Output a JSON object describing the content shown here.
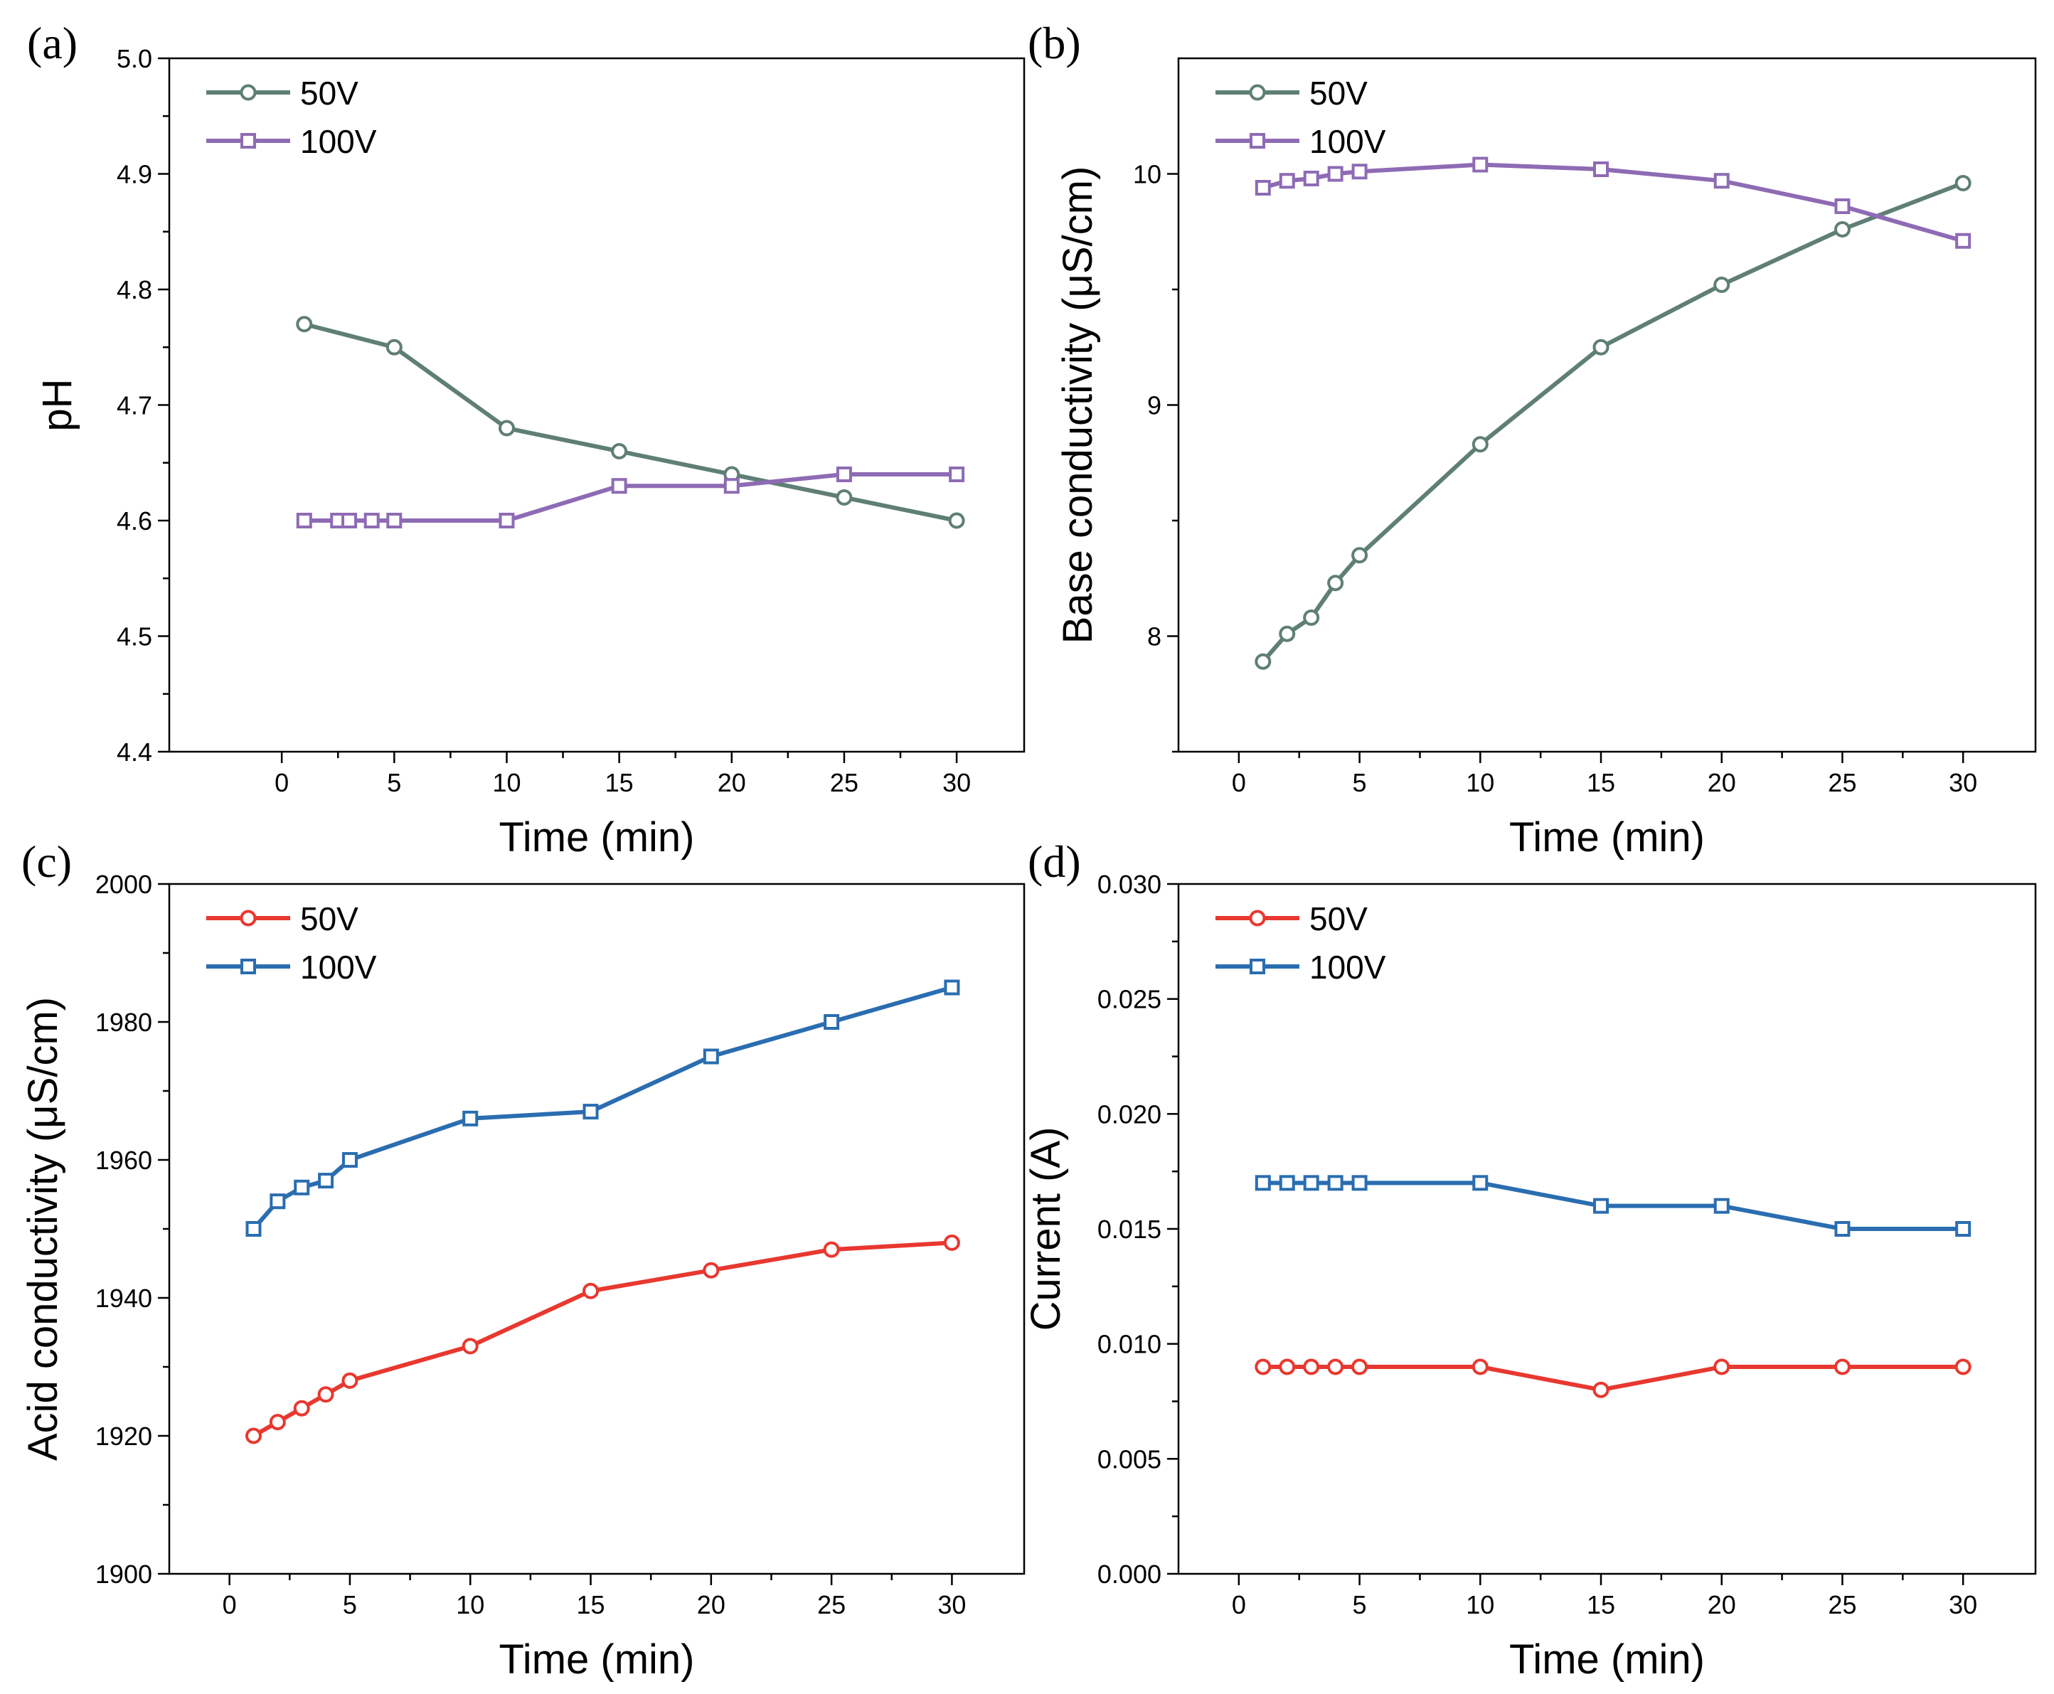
{
  "chart_data": [
    {
      "panel_label": "(a)",
      "type": "line",
      "xlabel": "Time (min)",
      "ylabel": "pH",
      "xlim": [
        -5,
        33
      ],
      "ylim": [
        4.4,
        5.0
      ],
      "xticks": [
        0,
        5,
        10,
        15,
        20,
        25,
        30
      ],
      "yticks": [
        4.4,
        4.5,
        4.6,
        4.7,
        4.8,
        4.9,
        5.0
      ],
      "ytick_decimals": 1,
      "legend": "top-left",
      "series": [
        {
          "name": "50V",
          "marker": "circle",
          "color": "#5f7f76",
          "x": [
            1,
            5,
            10,
            15,
            20,
            25,
            30
          ],
          "y": [
            4.77,
            4.75,
            4.68,
            4.66,
            4.64,
            4.62,
            4.6
          ]
        },
        {
          "name": "100V",
          "marker": "square",
          "color": "#8e6bb4",
          "x": [
            1,
            2.5,
            3,
            4,
            5,
            10,
            15,
            20,
            25,
            30
          ],
          "y": [
            4.6,
            4.6,
            4.6,
            4.6,
            4.6,
            4.6,
            4.63,
            4.63,
            4.64,
            4.64
          ]
        }
      ]
    },
    {
      "panel_label": "(b)",
      "type": "line",
      "xlabel": "Time (min)",
      "ylabel": "Base conductivity (μS/cm)",
      "xlim": [
        -2.5,
        33
      ],
      "ylim": [
        7.5,
        10.5
      ],
      "xticks": [
        0,
        5,
        10,
        15,
        20,
        25,
        30
      ],
      "yticks": [
        8,
        9,
        10
      ],
      "ytick_decimals": 0,
      "legend": "top-left",
      "series": [
        {
          "name": "50V",
          "marker": "circle",
          "color": "#5f7f76",
          "x": [
            1,
            2,
            3,
            4,
            5,
            10,
            15,
            20,
            25,
            30
          ],
          "y": [
            7.89,
            8.01,
            8.08,
            8.23,
            8.35,
            8.83,
            9.25,
            9.52,
            9.76,
            9.96
          ]
        },
        {
          "name": "100V",
          "marker": "square",
          "color": "#8e6bb4",
          "x": [
            1,
            2,
            3,
            4,
            5,
            10,
            15,
            20,
            25,
            30
          ],
          "y": [
            9.94,
            9.97,
            9.98,
            10.0,
            10.01,
            10.04,
            10.02,
            9.97,
            9.86,
            9.71
          ]
        }
      ]
    },
    {
      "panel_label": "(c)",
      "type": "line",
      "xlabel": "Time (min)",
      "ylabel": "Acid conductivity (μS/cm)",
      "xlim": [
        -2.5,
        33
      ],
      "ylim": [
        1900,
        2000
      ],
      "xticks": [
        0,
        5,
        10,
        15,
        20,
        25,
        30
      ],
      "yticks": [
        1900,
        1920,
        1940,
        1960,
        1980,
        2000
      ],
      "ytick_decimals": 0,
      "legend": "top-left",
      "series": [
        {
          "name": "50V",
          "marker": "circle",
          "color": "#e8382f",
          "x": [
            1,
            2,
            3,
            4,
            5,
            10,
            15,
            20,
            25,
            30
          ],
          "y": [
            1920,
            1922,
            1924,
            1926,
            1928,
            1933,
            1941,
            1944,
            1947,
            1948
          ]
        },
        {
          "name": "100V",
          "marker": "square",
          "color": "#2a6db0",
          "x": [
            1,
            2,
            3,
            4,
            5,
            10,
            15,
            20,
            25,
            30
          ],
          "y": [
            1950,
            1954,
            1956,
            1957,
            1960,
            1966,
            1967,
            1975,
            1980,
            1985
          ]
        }
      ]
    },
    {
      "panel_label": "(d)",
      "type": "line",
      "xlabel": "Time (min)",
      "ylabel": "Current (A)",
      "xlim": [
        -2.5,
        33
      ],
      "ylim": [
        0.0,
        0.03
      ],
      "xticks": [
        0,
        5,
        10,
        15,
        20,
        25,
        30
      ],
      "yticks": [
        0.0,
        0.005,
        0.01,
        0.015,
        0.02,
        0.025,
        0.03
      ],
      "ytick_decimals": 3,
      "legend": "top-left",
      "series": [
        {
          "name": "50V",
          "marker": "circle",
          "color": "#e8382f",
          "x": [
            1,
            2,
            3,
            4,
            5,
            10,
            15,
            20,
            25,
            30
          ],
          "y": [
            0.009,
            0.009,
            0.009,
            0.009,
            0.009,
            0.009,
            0.008,
            0.009,
            0.009,
            0.009
          ]
        },
        {
          "name": "100V",
          "marker": "square",
          "color": "#2a6db0",
          "x": [
            1,
            2,
            3,
            4,
            5,
            10,
            15,
            20,
            25,
            30
          ],
          "y": [
            0.017,
            0.017,
            0.017,
            0.017,
            0.017,
            0.017,
            0.016,
            0.016,
            0.015,
            0.015
          ]
        }
      ]
    }
  ]
}
